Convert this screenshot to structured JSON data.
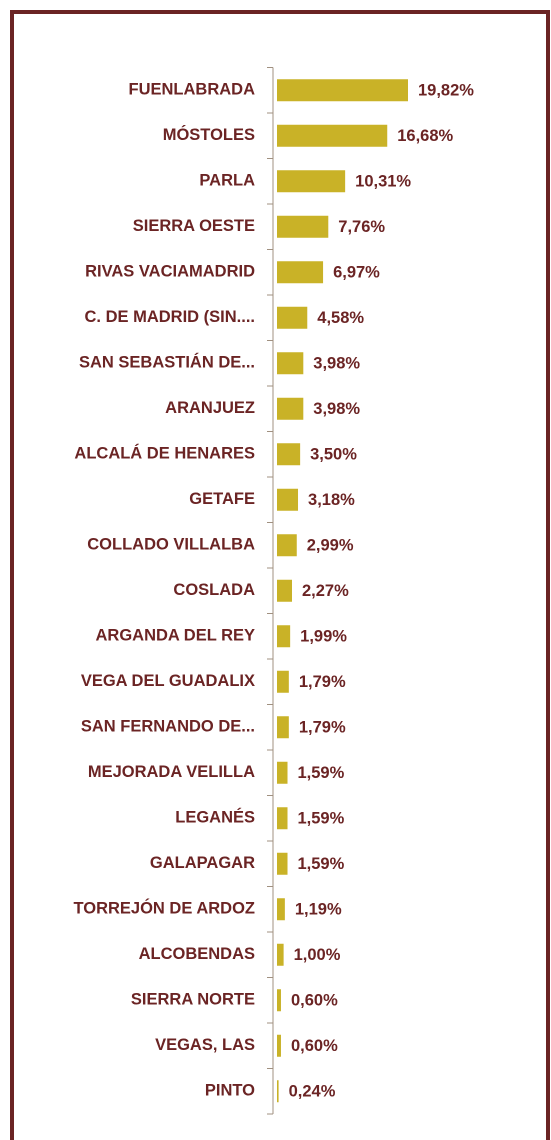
{
  "chart_data": {
    "type": "bar",
    "orientation": "horizontal",
    "color": "#c9b227",
    "categories": [
      "FUENLABRADA",
      "MÓSTOLES",
      "PARLA",
      "SIERRA OESTE",
      "RIVAS VACIAMADRID",
      "C. DE MADRID (SIN....",
      "SAN SEBASTIÁN DE...",
      "ARANJUEZ",
      "ALCALÁ DE HENARES",
      "GETAFE",
      "COLLADO VILLALBA",
      "COSLADA",
      "ARGANDA DEL REY",
      "VEGA DEL GUADALIX",
      "SAN FERNANDO DE...",
      "MEJORADA VELILLA",
      "LEGANÉS",
      "GALAPAGAR",
      "TORREJÓN DE ARDOZ",
      "ALCOBENDAS",
      "SIERRA NORTE",
      "VEGAS, LAS",
      "PINTO"
    ],
    "values": [
      19.82,
      16.68,
      10.31,
      7.76,
      6.97,
      4.58,
      3.98,
      3.98,
      3.5,
      3.18,
      2.99,
      2.27,
      1.99,
      1.79,
      1.79,
      1.59,
      1.59,
      1.59,
      1.19,
      1.0,
      0.6,
      0.6,
      0.24
    ],
    "value_labels": [
      "19,82%",
      "16,68%",
      "10,31%",
      "7,76%",
      "6,97%",
      "4,58%",
      "3,98%",
      "3,98%",
      "3,50%",
      "3,18%",
      "2,99%",
      "2,27%",
      "1,99%",
      "1,79%",
      "1,79%",
      "1,59%",
      "1,59%",
      "1,59%",
      "1,19%",
      "1,00%",
      "0,60%",
      "0,60%",
      "0,24%"
    ]
  }
}
